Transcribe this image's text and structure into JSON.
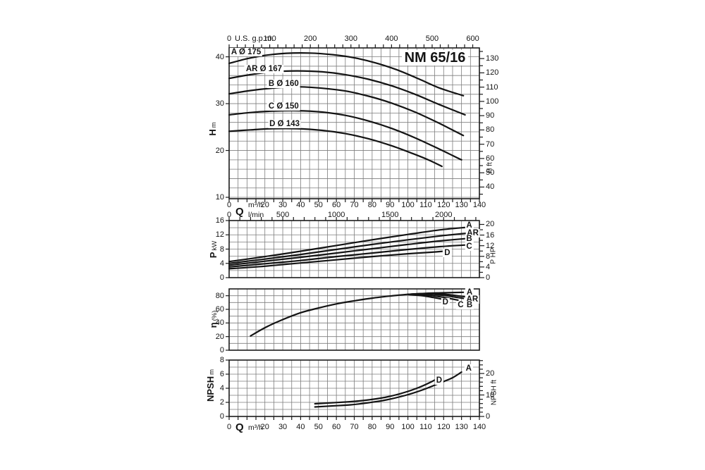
{
  "labels": {
    "title": "NM 65/16",
    "gpm_unit": "U.S. g.p.m.",
    "q": "Q",
    "m3h": "m³/h",
    "lmin": "l/min",
    "h": "H",
    "h_unit": "m",
    "h_right": "H ft",
    "p": "P",
    "p_unit": "kW",
    "p_right": "P HP",
    "eta": "η",
    "eta_unit": "(%)",
    "npsh": "NPSH",
    "npsh_unit": "m",
    "npsh_right": "NPSH ft"
  },
  "colors": {
    "background": "#ffffff",
    "ink": "#141414",
    "grid": "#7d7d7d",
    "border": "#1c1c1c",
    "curve": "#141414"
  },
  "chart_data": [
    {
      "id": "head",
      "type": "line",
      "title": "NM 65/16",
      "xlabel": "Q m³/h",
      "ylabel": "H m",
      "x": {
        "min": 0,
        "max": 140,
        "grid_step": 5,
        "tick_step": 5,
        "tick_labels": [
          0,
          20,
          30,
          40,
          50,
          60,
          70,
          80,
          90,
          100,
          110,
          120,
          130,
          140
        ]
      },
      "y": {
        "min": 9.7,
        "max": 41.9,
        "grid_step": 2,
        "tick_labels": [
          10,
          20,
          30,
          40
        ]
      },
      "x_top": {
        "unit": "U.S. g.p.m.",
        "factor": 0.22712,
        "tick_step": 20,
        "tick_labels": [
          0,
          100,
          200,
          300,
          400,
          500,
          600
        ]
      },
      "y_right": {
        "unit": "H ft",
        "factor": 0.3048,
        "tick_step": 5,
        "tick_labels": [
          40,
          50,
          60,
          70,
          80,
          90,
          100,
          110,
          120,
          130
        ]
      },
      "show_bottom": true,
      "series": [
        {
          "name": "A",
          "label": "A Ø 175",
          "points": [
            [
              0,
              38.6
            ],
            [
              10,
              39.6
            ],
            [
              20,
              40.3
            ],
            [
              32,
              40.75
            ],
            [
              45,
              40.8
            ],
            [
              58,
              40.45
            ],
            [
              70,
              39.8
            ],
            [
              82,
              38.7
            ],
            [
              94,
              37.2
            ],
            [
              106,
              35.3
            ],
            [
              118,
              33.3
            ],
            [
              131,
              31.7
            ]
          ]
        },
        {
          "name": "AR",
          "label": "AR Ø 167",
          "points": [
            [
              0,
              35.4
            ],
            [
              12,
              36.2
            ],
            [
              24,
              36.8
            ],
            [
              38,
              37.0
            ],
            [
              52,
              36.8
            ],
            [
              65,
              36.2
            ],
            [
              78,
              35.2
            ],
            [
              91,
              33.8
            ],
            [
              104,
              32.0
            ],
            [
              117,
              29.9
            ],
            [
              132,
              27.6
            ]
          ]
        },
        {
          "name": "B",
          "label": "B Ø 160",
          "points": [
            [
              0,
              32.1
            ],
            [
              12,
              32.8
            ],
            [
              24,
              33.3
            ],
            [
              38,
              33.6
            ],
            [
              52,
              33.3
            ],
            [
              65,
              32.7
            ],
            [
              78,
              31.6
            ],
            [
              91,
              30.1
            ],
            [
              104,
              28.2
            ],
            [
              117,
              25.9
            ],
            [
              131,
              23.2
            ]
          ]
        },
        {
          "name": "C",
          "label": "C Ø 150",
          "points": [
            [
              0,
              27.6
            ],
            [
              12,
              28.1
            ],
            [
              24,
              28.4
            ],
            [
              38,
              28.5
            ],
            [
              52,
              28.2
            ],
            [
              65,
              27.5
            ],
            [
              78,
              26.3
            ],
            [
              91,
              24.7
            ],
            [
              104,
              22.7
            ],
            [
              117,
              20.4
            ],
            [
              130,
              18.0
            ]
          ]
        },
        {
          "name": "D",
          "label": "D Ø 143",
          "points": [
            [
              0,
              24.1
            ],
            [
              12,
              24.4
            ],
            [
              24,
              24.65
            ],
            [
              38,
              24.65
            ],
            [
              52,
              24.3
            ],
            [
              65,
              23.6
            ],
            [
              78,
              22.5
            ],
            [
              91,
              21.0
            ],
            [
              103,
              19.3
            ],
            [
              112,
              17.9
            ],
            [
              119,
              16.6
            ]
          ]
        }
      ],
      "series_labels": [
        {
          "text": "A Ø 175",
          "q": 9.5,
          "v": 41.0
        },
        {
          "text": "AR Ø 167",
          "q": 19.5,
          "v": 37.4
        },
        {
          "text": "B Ø 160",
          "q": 30.5,
          "v": 34.2
        },
        {
          "text": "C Ø 150",
          "q": 30.5,
          "v": 29.4
        },
        {
          "text": "D Ø 143",
          "q": 31,
          "v": 25.6
        }
      ]
    },
    {
      "id": "power",
      "type": "line",
      "xlabel": "Q l/min",
      "ylabel": "P kW",
      "x": {
        "min": 0,
        "max": 140,
        "grid_step": 5,
        "tick_step": 5,
        "tick_labels": []
      },
      "y": {
        "min": 0,
        "max": 16,
        "grid_step": 2,
        "tick_labels": [
          0,
          4,
          8,
          12,
          16
        ]
      },
      "x_top": {
        "unit": "l/min",
        "factor": 0.06,
        "tick_step": 100,
        "tick_labels": [
          0,
          500,
          1000,
          1500,
          2000
        ]
      },
      "y_right": {
        "unit": "P HP",
        "factor": 0.7457,
        "tick_step": 2,
        "tick_labels": [
          0,
          4,
          8,
          12,
          16,
          20
        ]
      },
      "show_bottom": false,
      "series": [
        {
          "name": "A",
          "points": [
            [
              0,
              4.5
            ],
            [
              20,
              5.9
            ],
            [
              40,
              7.4
            ],
            [
              60,
              9.0
            ],
            [
              80,
              10.6
            ],
            [
              100,
              12.1
            ],
            [
              118,
              13.4
            ],
            [
              133,
              14.1
            ]
          ]
        },
        {
          "name": "AR",
          "points": [
            [
              0,
              4.0
            ],
            [
              20,
              5.2
            ],
            [
              40,
              6.5
            ],
            [
              60,
              7.9
            ],
            [
              80,
              9.3
            ],
            [
              100,
              10.6
            ],
            [
              118,
              11.7
            ],
            [
              134,
              12.5
            ]
          ]
        },
        {
          "name": "B",
          "points": [
            [
              0,
              3.5
            ],
            [
              20,
              4.6
            ],
            [
              40,
              5.7
            ],
            [
              60,
              6.9
            ],
            [
              80,
              8.1
            ],
            [
              100,
              9.3
            ],
            [
              118,
              10.3
            ],
            [
              134,
              11.0
            ]
          ]
        },
        {
          "name": "C",
          "points": [
            [
              0,
              3.0
            ],
            [
              20,
              3.9
            ],
            [
              40,
              4.8
            ],
            [
              60,
              5.9
            ],
            [
              80,
              6.9
            ],
            [
              100,
              7.9
            ],
            [
              118,
              8.7
            ],
            [
              134,
              9.2
            ]
          ]
        },
        {
          "name": "D",
          "points": [
            [
              0,
              2.5
            ],
            [
              20,
              3.2
            ],
            [
              40,
              4.1
            ],
            [
              60,
              5.0
            ],
            [
              80,
              5.9
            ],
            [
              100,
              6.7
            ],
            [
              112,
              7.1
            ],
            [
              120,
              7.4
            ]
          ]
        }
      ],
      "series_labels": [
        {
          "text": "A",
          "q": 134.3,
          "v": 14.6
        },
        {
          "text": "AR",
          "q": 136.3,
          "v": 12.5
        },
        {
          "text": "B",
          "q": 134.3,
          "v": 10.85
        },
        {
          "text": "C",
          "q": 134.3,
          "v": 8.75
        },
        {
          "text": "D",
          "q": 122,
          "v": 6.95
        }
      ]
    },
    {
      "id": "eff",
      "type": "line",
      "xlabel": "Q m³/h",
      "ylabel": "η (%)",
      "x": {
        "min": 0,
        "max": 140,
        "grid_step": 5,
        "tick_step": 5,
        "tick_labels": []
      },
      "y": {
        "min": 0,
        "max": 90,
        "grid_step": 10,
        "tick_labels": [
          0,
          20,
          40,
          60,
          80
        ]
      },
      "show_bottom": false,
      "series": [
        {
          "name": "A",
          "points": [
            [
              12,
              21
            ],
            [
              20,
              33
            ],
            [
              30,
              45
            ],
            [
              40,
              55
            ],
            [
              50,
              62
            ],
            [
              60,
              68
            ],
            [
              70,
              72.5
            ],
            [
              80,
              76.5
            ],
            [
              90,
              79.5
            ],
            [
              100,
              82
            ],
            [
              110,
              83.5
            ],
            [
              120,
              84.3
            ],
            [
              131,
              85
            ]
          ]
        },
        {
          "name": "AR",
          "points": [
            [
              100,
              82
            ],
            [
              110,
              83.2
            ],
            [
              121,
              82
            ],
            [
              132,
              78.5
            ]
          ]
        },
        {
          "name": "B",
          "points": [
            [
              100,
              82
            ],
            [
              110,
              82.8
            ],
            [
              120,
              80.5
            ],
            [
              131,
              76
            ]
          ]
        },
        {
          "name": "C",
          "points": [
            [
              100,
              82
            ],
            [
              110,
              81
            ],
            [
              119,
              78
            ],
            [
              128,
              73.5
            ]
          ]
        },
        {
          "name": "D",
          "points": [
            [
              100,
              82
            ],
            [
              108,
              80
            ],
            [
              114,
              77.5
            ],
            [
              120,
              74.5
            ]
          ]
        }
      ],
      "series_labels": [
        {
          "text": "A",
          "q": 134.5,
          "v": 85.3
        },
        {
          "text": "AR",
          "q": 136,
          "v": 74.5
        },
        {
          "text": "B",
          "q": 134.5,
          "v": 65.8
        },
        {
          "text": "C",
          "q": 129.5,
          "v": 65.8
        },
        {
          "text": "D",
          "q": 121,
          "v": 70
        }
      ]
    },
    {
      "id": "npsh",
      "type": "line",
      "xlabel": "Q m³/h",
      "ylabel": "NPSH m",
      "x": {
        "min": 0,
        "max": 140,
        "grid_step": 5,
        "tick_step": 5,
        "tick_labels": [
          0,
          20,
          30,
          40,
          50,
          60,
          70,
          80,
          90,
          100,
          110,
          120,
          130,
          140
        ]
      },
      "y": {
        "min": 0,
        "max": 8,
        "grid_step": 1,
        "tick_labels": [
          0,
          2,
          4,
          6,
          8
        ]
      },
      "y_right": {
        "unit": "NPSH ft",
        "factor": 0.3048,
        "tick_step": 2,
        "tick_labels": [
          0,
          10,
          20
        ]
      },
      "show_bottom": true,
      "series": [
        {
          "name": "A",
          "points": [
            [
              48,
              1.35
            ],
            [
              58,
              1.5
            ],
            [
              68,
              1.65
            ],
            [
              78,
              1.95
            ],
            [
              88,
              2.35
            ],
            [
              98,
              2.95
            ],
            [
              108,
              3.75
            ],
            [
              118,
              4.75
            ],
            [
              125,
              5.5
            ],
            [
              130,
              6.3
            ]
          ]
        },
        {
          "name": "D",
          "points": [
            [
              48,
              1.8
            ],
            [
              58,
              1.95
            ],
            [
              68,
              2.1
            ],
            [
              78,
              2.35
            ],
            [
              88,
              2.75
            ],
            [
              98,
              3.4
            ],
            [
              106,
              4.1
            ],
            [
              113,
              4.9
            ],
            [
              118,
              5.6
            ]
          ]
        }
      ],
      "series_labels": [
        {
          "text": "A",
          "q": 134,
          "v": 6.8
        },
        {
          "text": "D",
          "q": 117.5,
          "v": 5.1
        }
      ]
    }
  ]
}
